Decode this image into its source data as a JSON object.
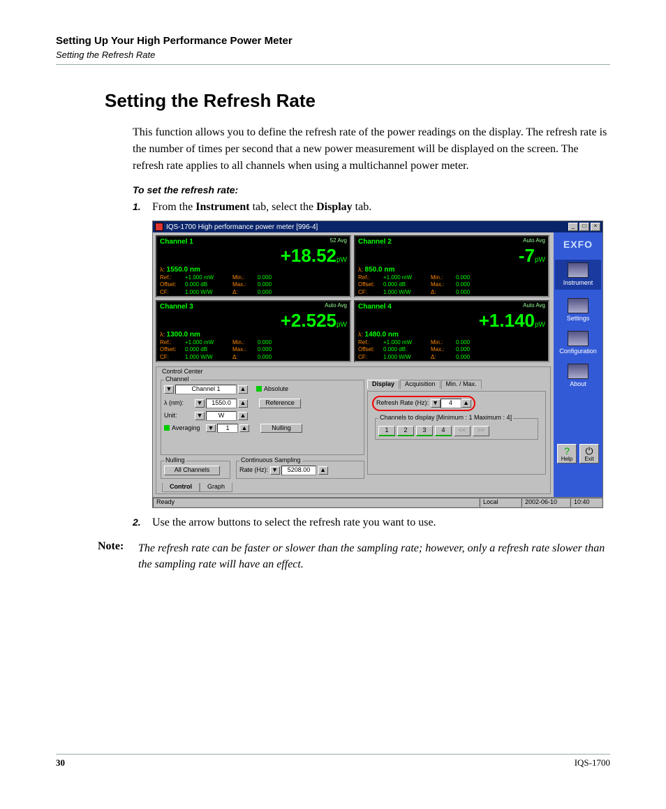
{
  "chapter": {
    "title": "Setting Up Your High Performance Power Meter",
    "sub": "Setting the Refresh Rate"
  },
  "section_title": "Setting the Refresh Rate",
  "intro": "This function allows you to define the refresh rate of the power readings on the display. The refresh rate is the number of times per second that a new power measurement will be displayed on the screen. The refresh rate applies to all channels when using a multichannel power meter.",
  "proc_head": "To set the refresh rate:",
  "steps": {
    "s1_num": "1.",
    "s1_a": "From the ",
    "s1_b": "Instrument",
    "s1_c": " tab, select the ",
    "s1_d": "Display",
    "s1_e": " tab.",
    "s2_num": "2.",
    "s2": "Use the arrow buttons to select the refresh rate you want to use."
  },
  "note": {
    "label": "Note:",
    "body": "The refresh rate can be faster or slower than the sampling rate; however, only a refresh rate slower than the sampling rate will have an effect."
  },
  "footer": {
    "page": "30",
    "doc": "IQS-1700"
  },
  "ui": {
    "title": "IQS-1700 High performance power meter [996-4]",
    "win_btns": [
      "_",
      "□",
      "×"
    ],
    "channels": [
      {
        "name": "Channel 1",
        "avg": "52\nAvg",
        "val": "+18.52",
        "unit": "pW",
        "lambda": "1550.0 nm",
        "rows": [
          [
            "Ref.:",
            "+1.000  mW",
            "Min.:",
            "0.000"
          ],
          [
            "Offset:",
            "0.000  dB",
            "Max.:",
            "0.000"
          ],
          [
            "CF:",
            "1.000  W/W",
            "Δ:",
            "0.000"
          ]
        ]
      },
      {
        "name": "Channel 2",
        "avg": "Auto\nAvg",
        "val": "-7",
        "unit": "pW",
        "lambda": "850.0 nm",
        "rows": [
          [
            "Ref.:",
            "+1.000  mW",
            "Min.:",
            "0.000"
          ],
          [
            "Offset:",
            "0.000  dB",
            "Max.:",
            "0.000"
          ],
          [
            "CF:",
            "1.000  W/W",
            "Δ:",
            "0.000"
          ]
        ]
      },
      {
        "name": "Channel 3",
        "avg": "Auto\nAvg",
        "val": "+2.525",
        "unit": "pW",
        "lambda": "1300.0 nm",
        "rows": [
          [
            "Ref.:",
            "+1.000  mW",
            "Min.:",
            "0.000"
          ],
          [
            "Offset:",
            "0.000  dB",
            "Max.:",
            "0.000"
          ],
          [
            "CF:",
            "1.000  W/W",
            "Δ:",
            "0.000"
          ]
        ]
      },
      {
        "name": "Channel 4",
        "avg": "Auto\nAvg",
        "val": "+1.140",
        "unit": "pW",
        "lambda": "1480.0 nm",
        "rows": [
          [
            "Ref.:",
            "+1.000  mW",
            "Min.:",
            "0.000"
          ],
          [
            "Offset:",
            "0.000  dB",
            "Max.:",
            "0.000"
          ],
          [
            "CF:",
            "1.000  W/W",
            "Δ:",
            "0.000"
          ]
        ]
      }
    ],
    "cc_title": "Control Center",
    "channel_group": {
      "title": "Channel",
      "sel": "Channel 1",
      "abs": "Absolute",
      "lambda_label": "λ  (nm):",
      "lambda_val": "1550.0",
      "unit_label": "Unit:",
      "unit_val": "W",
      "avg_label": "Averaging",
      "avg_val": "1",
      "ref": "Reference",
      "null": "Nulling"
    },
    "display_tabs": [
      "Display",
      "Acquisition",
      "Min. / Max."
    ],
    "refresh_label": "Refresh Rate (Hz):",
    "refresh_val": "4",
    "chdisp_title": "Channels to display [Minimum : 1  Maximum : 4]",
    "chdisp_btns": [
      "1",
      "2",
      "3",
      "4",
      "<<",
      ">>"
    ],
    "nulling": {
      "title": "Nulling",
      "btn": "All Channels"
    },
    "sampling": {
      "title": "Continuous Sampling",
      "label": "Rate (Hz):",
      "val": "5208.00"
    },
    "bottom_tabs": [
      "Control",
      "Graph"
    ],
    "side": {
      "logo": "EXFO",
      "items": [
        "Instrument",
        "Settings",
        "Configuration",
        "About"
      ],
      "help": "Help",
      "exit": "Exit"
    },
    "status": {
      "ready": "Ready",
      "local": "Local",
      "date": "2002-06-10",
      "time": "10:40"
    },
    "arrows": {
      "down": "▼",
      "up": "▲"
    }
  },
  "colors": {
    "screen_bg": "#000000",
    "value_fg": "#00ff00",
    "label_fg": "#ff8800",
    "win_bg": "#c0c0c0",
    "title_bg": "#0a246a",
    "side_bg": "#335ad6",
    "circle": "#e00000",
    "hr": "#99aaaa"
  }
}
